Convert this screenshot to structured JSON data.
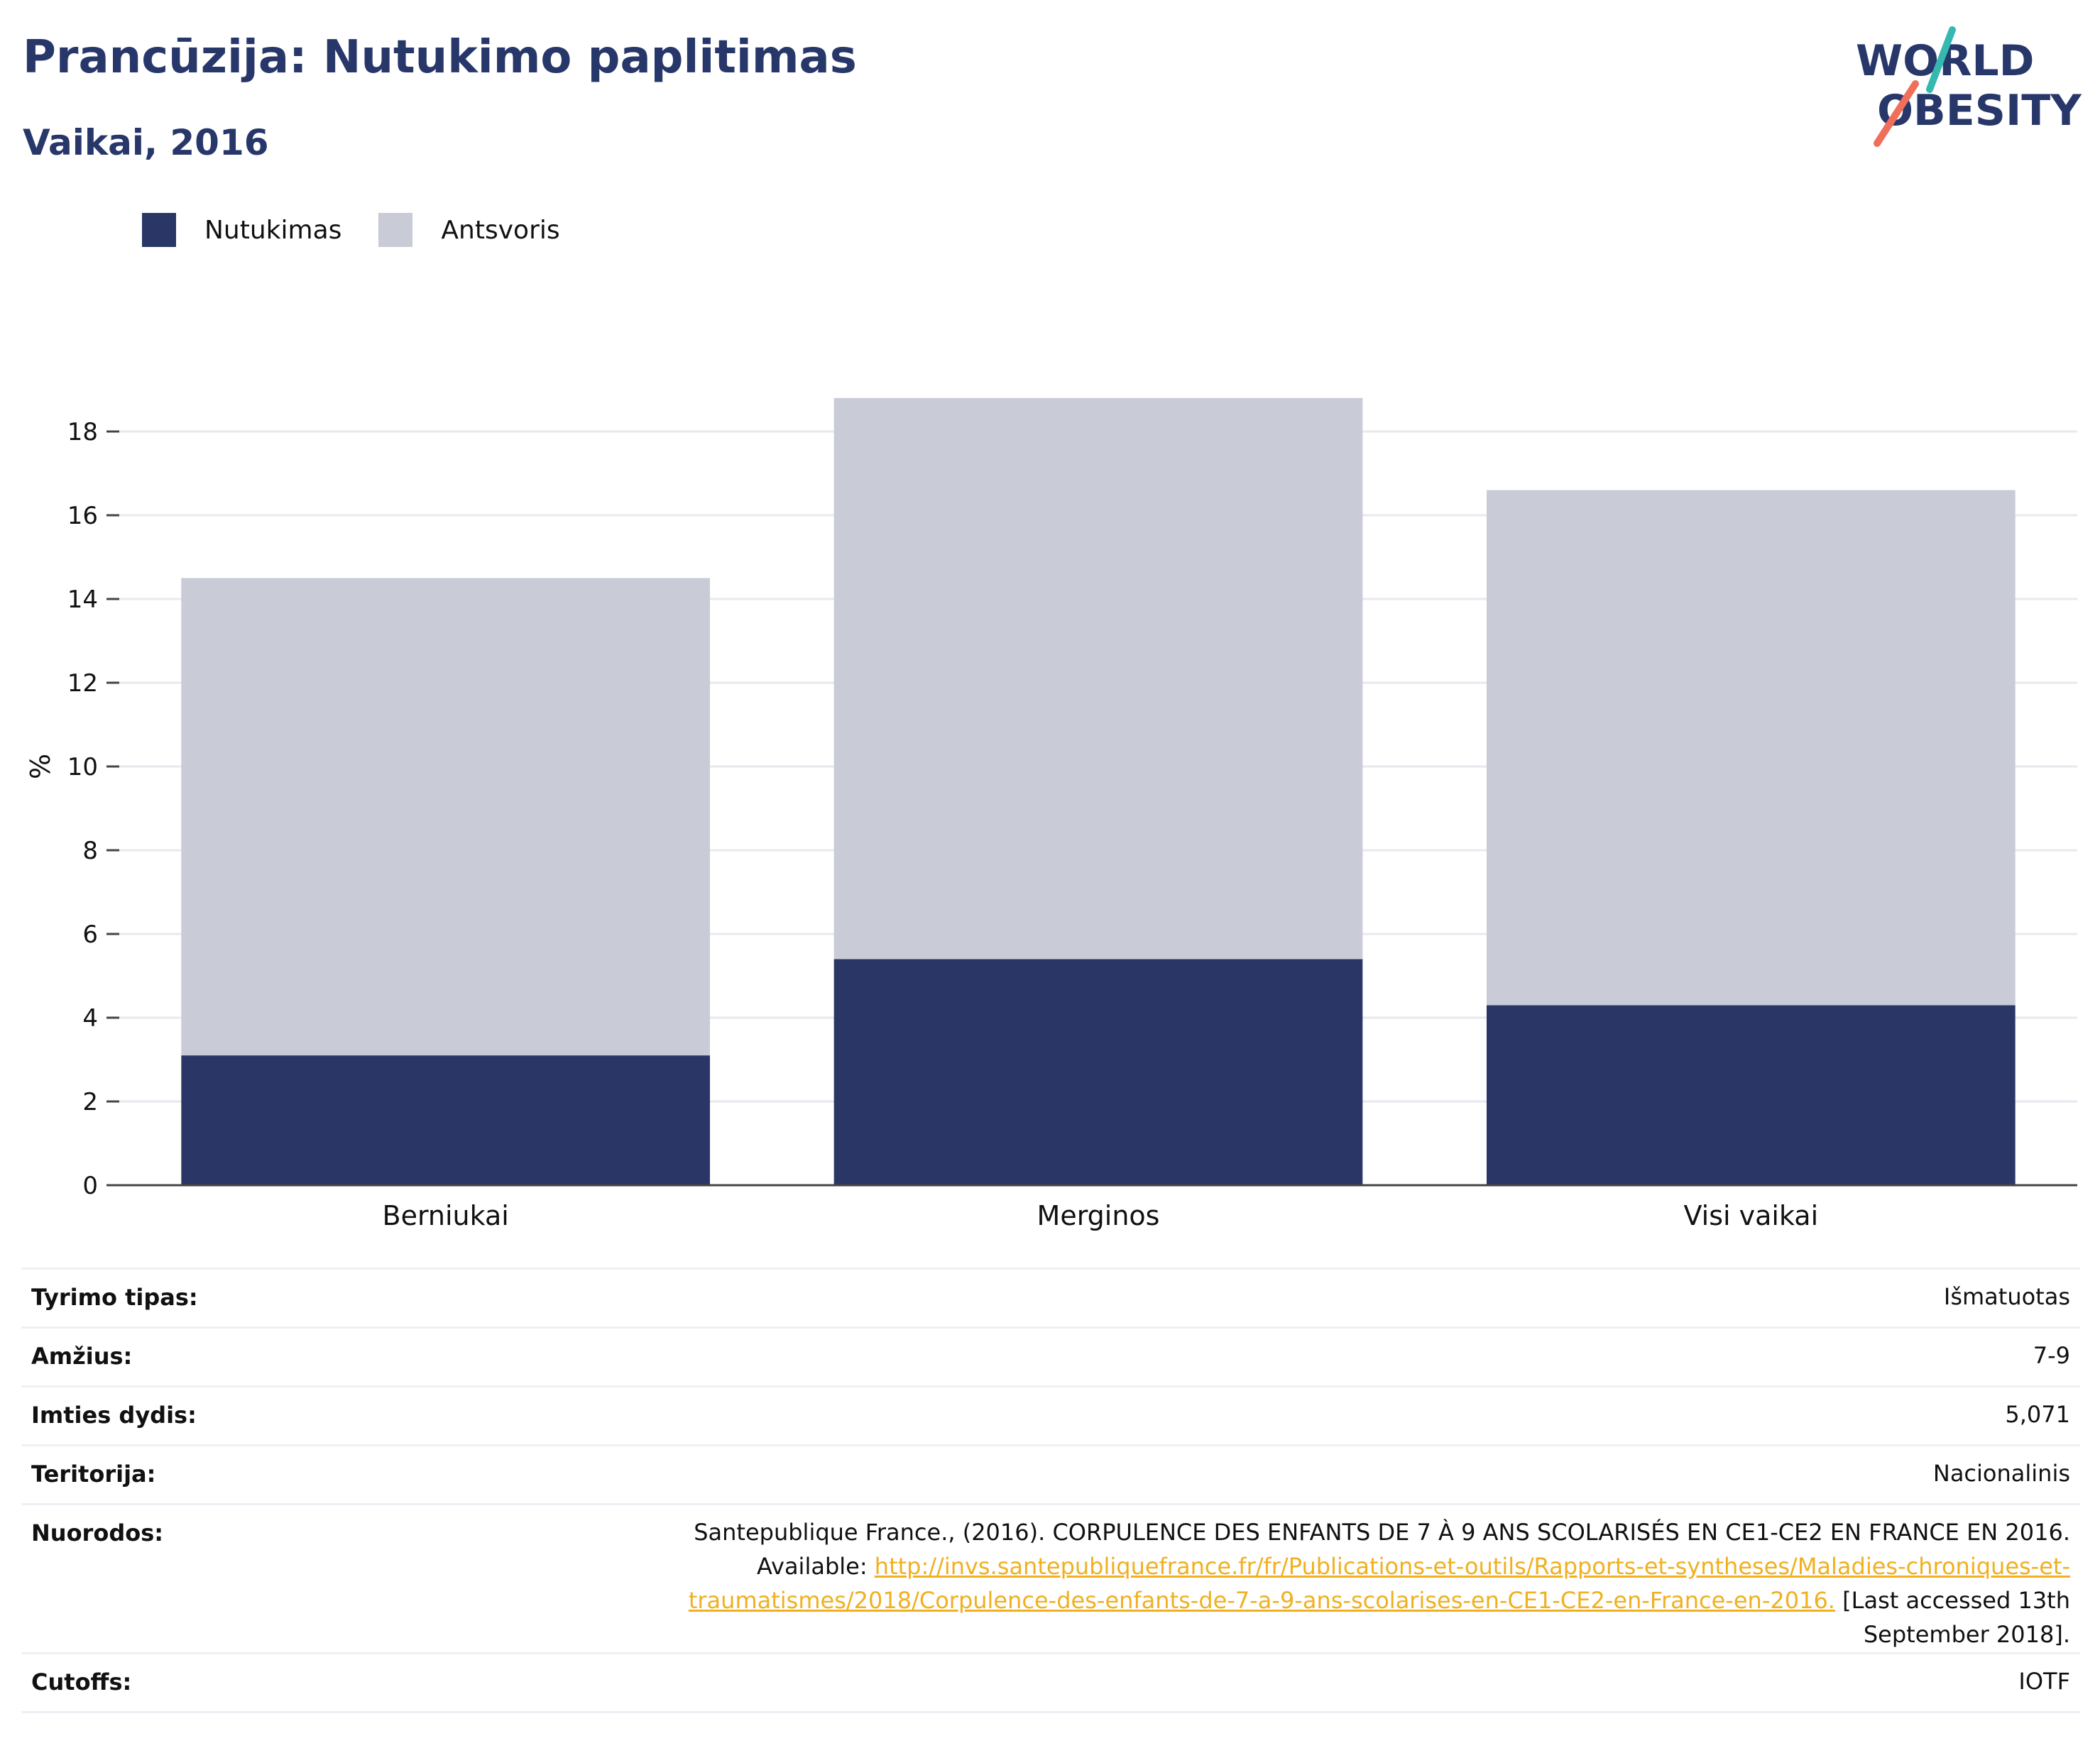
{
  "header": {
    "title": "Prancūzija: Nutukimo paplitimas",
    "subtitle": "Vaikai, 2016"
  },
  "logo": {
    "line1": "WORLD",
    "line2": "OBESITY"
  },
  "chart_data": {
    "type": "bar",
    "stacked": true,
    "categories": [
      "Berniukai",
      "Merginos",
      "Visi vaikai"
    ],
    "series": [
      {
        "name": "Nutukimas",
        "color": "#2a3766",
        "values": [
          3.1,
          5.4,
          4.3
        ]
      },
      {
        "name": "Antsvoris",
        "color": "#c9cbd6",
        "values": [
          11.4,
          13.4,
          12.3
        ]
      }
    ],
    "ylabel": "%",
    "ylim": [
      0,
      19
    ],
    "yticks": [
      0,
      2,
      4,
      6,
      8,
      10,
      12,
      14,
      16,
      18
    ],
    "grid": true,
    "legend_position": "top-left"
  },
  "info": {
    "rows": [
      {
        "key": "Tyrimo tipas:",
        "value": "Išmatuotas"
      },
      {
        "key": "Amžius:",
        "value": "7-9"
      },
      {
        "key": "Imties dydis:",
        "value": "5,071"
      },
      {
        "key": "Teritorija:",
        "value": "Nacionalinis"
      }
    ],
    "reference": {
      "key": "Nuorodos:",
      "line1": "Santepublique France., (2016). CORPULENCE DES ENFANTS DE 7 À 9 ANS SCOLARISÉS EN CE1-CE2 EN FRANCE EN 2016.",
      "available": "Available:",
      "link_part1": "http://invs.santepubliquefrance.fr/fr/Publications-et-outils/Rapports-et-syntheses/Maladies-chroniques-et-",
      "link_part2": "traumatismes/2018/Corpulence-des-enfants-de-7-a-9-ans-scolarises-en-CE1-CE2-en-France-en-2016.",
      "accessed_part1": "[Last accessed 13th",
      "accessed_part2": "September 2018]."
    },
    "cutoffs": {
      "key": "Cutoffs:",
      "value": "IOTF"
    }
  }
}
